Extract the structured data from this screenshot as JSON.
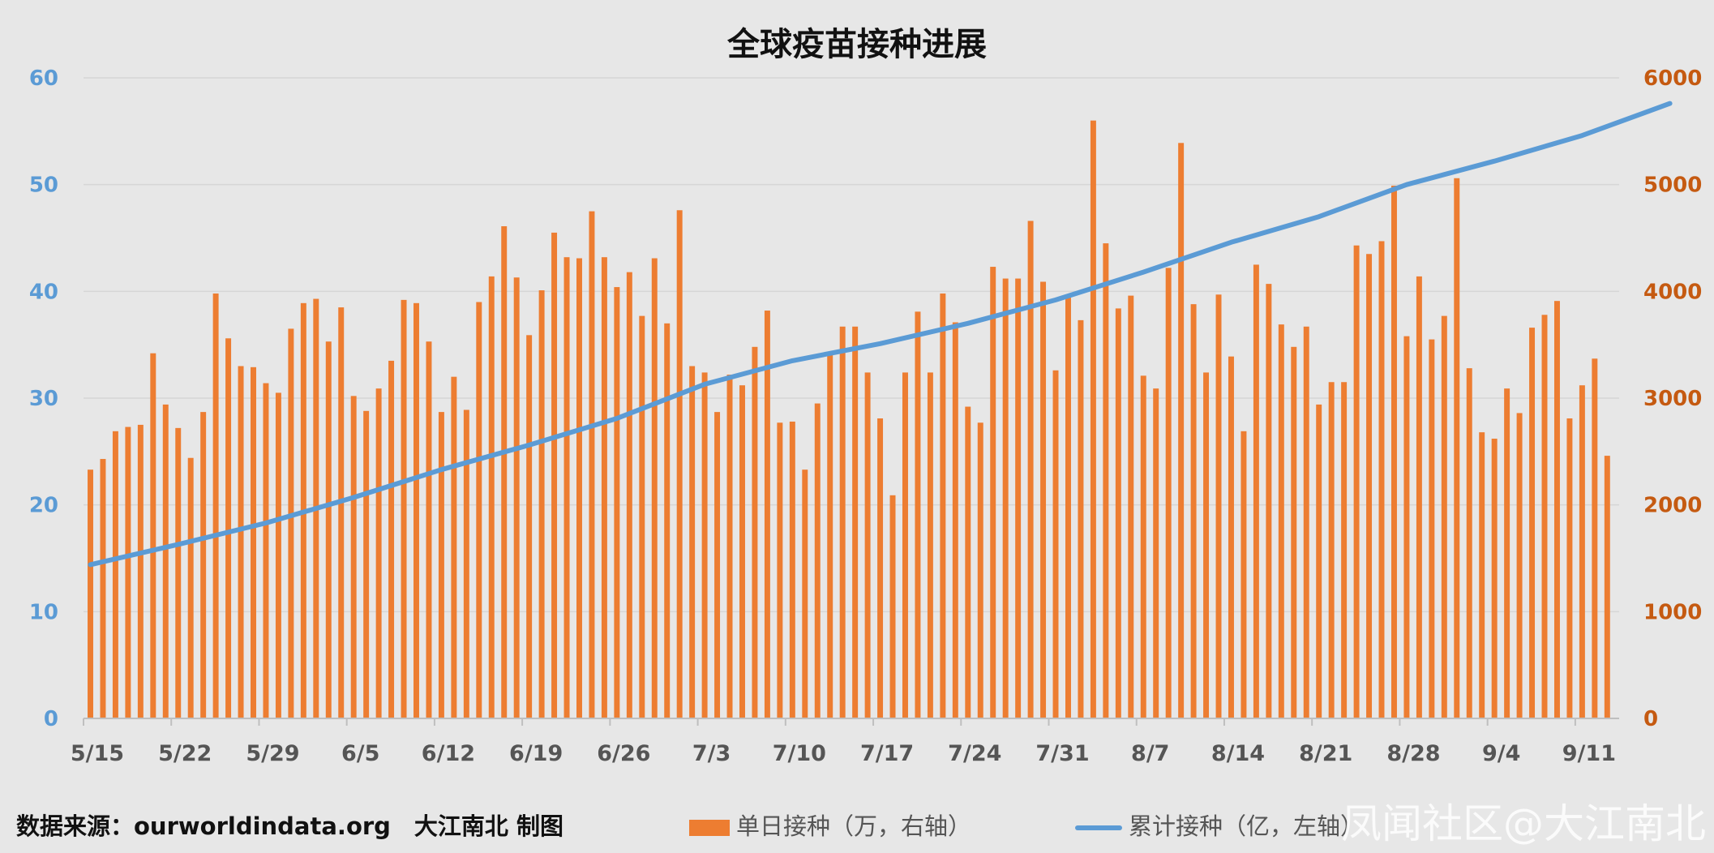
{
  "chart_data": {
    "type": "bar+line",
    "title": "全球疫苗接种进展",
    "x_tick_labels": [
      "5/15",
      "5/22",
      "5/29",
      "6/5",
      "6/12",
      "6/19",
      "6/26",
      "7/3",
      "7/10",
      "7/17",
      "7/24",
      "7/31",
      "8/7",
      "8/14",
      "8/21",
      "8/28",
      "9/4",
      "9/11"
    ],
    "y_left_ticks": [
      "0",
      "10",
      "20",
      "30",
      "40",
      "50",
      "60"
    ],
    "y_left_range": [
      0,
      60
    ],
    "y_right_ticks": [
      "0",
      "1000",
      "2000",
      "3000",
      "4000",
      "5000",
      "6000"
    ],
    "y_right_range": [
      0,
      6000
    ],
    "grid": true,
    "legend_position": "bottom",
    "series": [
      {
        "name": "单日接种（万，右轴）",
        "kind": "bar",
        "axis": "right",
        "color": "#ed7d31",
        "start_date": "5/15",
        "values": [
          2330,
          2430,
          2690,
          2730,
          2750,
          3420,
          2940,
          2720,
          2440,
          2870,
          3980,
          3560,
          3300,
          3290,
          3140,
          3050,
          3650,
          3890,
          3930,
          3530,
          3850,
          3020,
          2880,
          3090,
          3350,
          3920,
          3890,
          3530,
          2870,
          3200,
          2890,
          3900,
          4140,
          4610,
          4130,
          3590,
          4010,
          4550,
          4320,
          4310,
          4750,
          4320,
          4040,
          4180,
          3770,
          4310,
          3700,
          4760,
          3300,
          3240,
          2870,
          3220,
          3120,
          3480,
          3820,
          2770,
          2780,
          2330,
          2950,
          3420,
          3670,
          3670,
          3240,
          2810,
          2090,
          3240,
          3810,
          3240,
          3980,
          3710,
          2920,
          2770,
          4230,
          4120,
          4120,
          4660,
          4090,
          3260,
          3970,
          3730,
          5600,
          4450,
          3840,
          3960,
          3210,
          3090,
          4220,
          5390,
          3880,
          3240,
          3970,
          3390,
          2690,
          4250,
          4070,
          3690,
          3480,
          3670,
          2940,
          3150,
          3150,
          4430,
          4350,
          4470,
          4990,
          3580,
          4140,
          3550,
          3770,
          5060,
          3280,
          2680,
          2620,
          3090,
          2860,
          3660,
          3780,
          3910,
          2810,
          3120,
          3370,
          2460
        ]
      },
      {
        "name": "累计接种（亿，左轴）",
        "kind": "line",
        "axis": "left",
        "color": "#5b9bd5",
        "points": [
          [
            0,
            14.4
          ],
          [
            7,
            16.3
          ],
          [
            14,
            18.3
          ],
          [
            21,
            20.7
          ],
          [
            28,
            23.3
          ],
          [
            35,
            25.6
          ],
          [
            42,
            28.1
          ],
          [
            49,
            31.3
          ],
          [
            56,
            33.5
          ],
          [
            63,
            35.1
          ],
          [
            70,
            37.0
          ],
          [
            77,
            39.2
          ],
          [
            84,
            41.8
          ],
          [
            91,
            44.6
          ],
          [
            98,
            47.0
          ],
          [
            105,
            50.0
          ],
          [
            112,
            52.2
          ],
          [
            119,
            54.6
          ],
          [
            126,
            57.6
          ]
        ]
      }
    ]
  },
  "footer": {
    "source": "数据来源：ourworldindata.org　大江南北 制图"
  },
  "legend": {
    "bar_label": "单日接种（万，右轴）",
    "line_label": "累计接种（亿，左轴）"
  },
  "watermark": "凤闻社区@大江南北"
}
